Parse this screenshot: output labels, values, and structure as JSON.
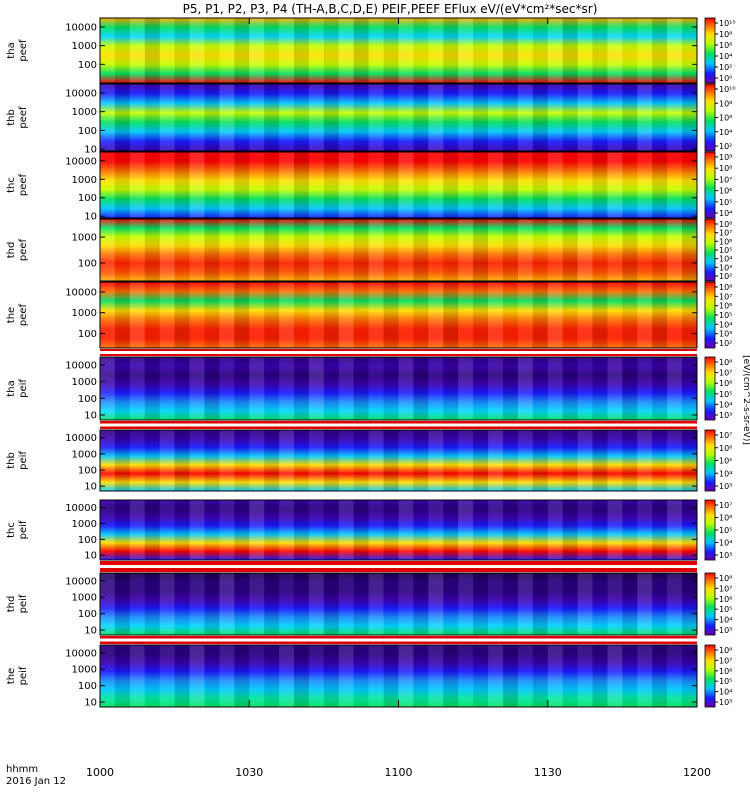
{
  "title": "P5, P1, P2, P3, P4 (TH-A,B,C,D,E) PEIF,PEEF EFlux eV/(eV*cm²*sec*sr)",
  "time_axis": {
    "label_line1": "hhmm",
    "label_line2": "2016 Jan 12",
    "ticks": [
      "1000",
      "1030",
      "1100",
      "1130",
      "1200"
    ]
  },
  "colorbar_label": "[eV/(cm^2-s-sr-eV)]",
  "chart_data": [
    {
      "type": "heatmap",
      "ylabel_line1": "tha",
      "ylabel_line2": "peef",
      "yticks": [
        "10000",
        "1000",
        "100"
      ],
      "cbar_ticks": [
        "10¹⁰",
        "10⁸",
        "10⁶",
        "10⁴",
        "10²",
        "10⁰"
      ],
      "ylim": [
        10,
        30000
      ],
      "x_range_hhmm": [
        "1000",
        "1200"
      ],
      "yscale": "log"
    },
    {
      "type": "heatmap",
      "ylabel_line1": "thb",
      "ylabel_line2": "peef",
      "yticks": [
        "10000",
        "1000",
        "100",
        "10"
      ],
      "cbar_ticks": [
        "10¹⁰",
        "10⁸",
        "10⁶",
        "10⁴",
        "10²"
      ],
      "ylim": [
        8,
        30000
      ],
      "x_range_hhmm": [
        "1000",
        "1200"
      ],
      "yscale": "log"
    },
    {
      "type": "heatmap",
      "ylabel_line1": "thc",
      "ylabel_line2": "peef",
      "yticks": [
        "10000",
        "1000",
        "100",
        "10"
      ],
      "cbar_ticks": [
        "10⁹",
        "10⁸",
        "10⁷",
        "10⁶",
        "10⁵",
        "10⁴"
      ],
      "ylim": [
        8,
        30000
      ],
      "x_range_hhmm": [
        "1000",
        "1200"
      ],
      "yscale": "log"
    },
    {
      "type": "heatmap",
      "ylabel_line1": "thd",
      "ylabel_line2": "peef",
      "yticks": [
        "1000",
        "100"
      ],
      "cbar_ticks": [
        "10⁸",
        "10⁷",
        "10⁶",
        "10⁵",
        "10⁴",
        "10³",
        "10²"
      ],
      "ylim": [
        20,
        5000
      ],
      "x_range_hhmm": [
        "1000",
        "1200"
      ],
      "yscale": "log"
    },
    {
      "type": "heatmap",
      "ylabel_line1": "the",
      "ylabel_line2": "peef",
      "yticks": [
        "10000",
        "1000",
        "100"
      ],
      "cbar_ticks": [
        "10⁸",
        "10⁷",
        "10⁶",
        "10⁵",
        "10⁴",
        "10³",
        "10²"
      ],
      "ylim": [
        20,
        30000
      ],
      "x_range_hhmm": [
        "1000",
        "1200"
      ],
      "yscale": "log"
    },
    {
      "type": "heatmap",
      "ylabel_line1": "tha",
      "ylabel_line2": "peif",
      "yticks": [
        "10000",
        "1000",
        "100",
        "10"
      ],
      "cbar_ticks": [
        "10⁸",
        "10⁷",
        "10⁶",
        "10⁵",
        "10⁴",
        "10³"
      ],
      "ylim": [
        5,
        30000
      ],
      "x_range_hhmm": [
        "1000",
        "1200"
      ],
      "yscale": "log"
    },
    {
      "type": "heatmap",
      "ylabel_line1": "thb",
      "ylabel_line2": "peif",
      "yticks": [
        "10000",
        "1000",
        "100",
        "10"
      ],
      "cbar_ticks": [
        "10⁷",
        "10⁶",
        "10⁵",
        "10⁴",
        "10³"
      ],
      "ylim": [
        5,
        30000
      ],
      "x_range_hhmm": [
        "1000",
        "1200"
      ],
      "yscale": "log"
    },
    {
      "type": "heatmap",
      "ylabel_line1": "thc",
      "ylabel_line2": "peif",
      "yticks": [
        "10000",
        "1000",
        "100",
        "10"
      ],
      "cbar_ticks": [
        "10⁷",
        "10⁶",
        "10⁵",
        "10⁴",
        "10³"
      ],
      "ylim": [
        5,
        30000
      ],
      "x_range_hhmm": [
        "1000",
        "1200"
      ],
      "yscale": "log"
    },
    {
      "type": "heatmap",
      "ylabel_line1": "thd",
      "ylabel_line2": "peif",
      "yticks": [
        "10000",
        "1000",
        "100",
        "10"
      ],
      "cbar_ticks": [
        "10⁸",
        "10⁷",
        "10⁶",
        "10⁵",
        "10⁴",
        "10³"
      ],
      "ylim": [
        5,
        30000
      ],
      "x_range_hhmm": [
        "1000",
        "1200"
      ],
      "yscale": "log"
    },
    {
      "type": "heatmap",
      "ylabel_line1": "the",
      "ylabel_line2": "peif",
      "yticks": [
        "10000",
        "1000",
        "100",
        "10"
      ],
      "cbar_ticks": [
        "10⁸",
        "10⁷",
        "10⁶",
        "10⁵",
        "10⁴",
        "10³"
      ],
      "ylim": [
        5,
        30000
      ],
      "x_range_hhmm": [
        "1000",
        "1200"
      ],
      "yscale": "log"
    }
  ]
}
